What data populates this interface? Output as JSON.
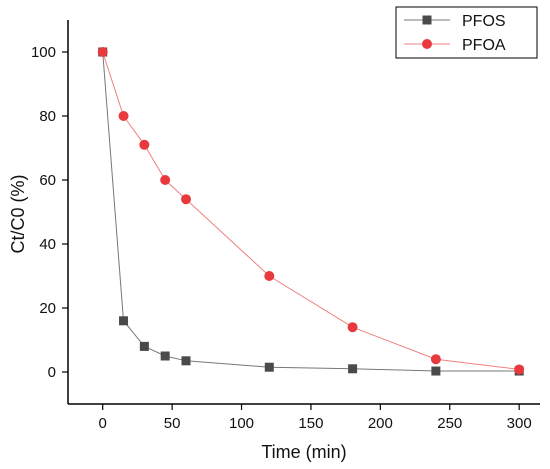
{
  "chart_data": {
    "type": "line",
    "title": "",
    "xlabel": "Time (min)",
    "ylabel": "Ct/C0 (%)",
    "xlim": [
      -25,
      315
    ],
    "ylim": [
      -10,
      110
    ],
    "x_ticks": [
      0,
      50,
      100,
      150,
      200,
      250,
      300
    ],
    "y_ticks": [
      0,
      20,
      40,
      60,
      80,
      100
    ],
    "grid": false,
    "legend_position": "top-right",
    "series": [
      {
        "name": "PFOS",
        "marker": "square",
        "color": "#4a4a4a",
        "line_color": "#777777",
        "x": [
          0,
          15,
          30,
          45,
          60,
          120,
          180,
          240,
          300
        ],
        "y": [
          100,
          16,
          8,
          5,
          3.5,
          1.5,
          1,
          0.3,
          0.3
        ]
      },
      {
        "name": "PFOA",
        "marker": "circle",
        "color": "#e8393f",
        "line_color": "#f08080",
        "x": [
          0,
          15,
          30,
          45,
          60,
          120,
          180,
          240,
          300
        ],
        "y": [
          100,
          80,
          71,
          60,
          54,
          30,
          14,
          4,
          0.8
        ]
      }
    ]
  }
}
